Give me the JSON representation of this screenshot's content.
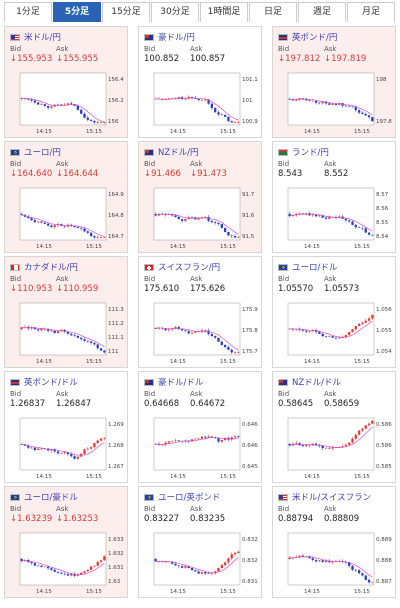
{
  "tabs": [
    {
      "label": "1分足",
      "active": false
    },
    {
      "label": "5分足",
      "active": true
    },
    {
      "label": "15分足",
      "active": false
    },
    {
      "label": "30分足",
      "active": false
    },
    {
      "label": "1時間足",
      "active": false
    },
    {
      "label": "日足",
      "active": false
    },
    {
      "label": "週足",
      "active": false
    },
    {
      "label": "月足",
      "active": false
    }
  ],
  "labels": {
    "bid": "Bid",
    "ask": "Ask"
  },
  "colors": {
    "pink_bg": "#fdeeee",
    "down": "#d43a3a",
    "title": "#3b3fa8",
    "tab_active": "#2a63b5",
    "candle_up": "#e23b3b",
    "candle_down": "#2b3fbf",
    "ma": "#d651c9"
  },
  "cards": [
    {
      "title": "米ドル/円",
      "flag": "us-flag-icon",
      "bid": "155.953",
      "ask": "155.955",
      "down": true,
      "bg": "pink",
      "x_labels": [
        "14:15",
        "15:15"
      ],
      "y_labels": [
        "156.4",
        "156.2",
        "156"
      ],
      "trend": "down"
    },
    {
      "title": "豪ドル/円",
      "flag": "au-flag-icon",
      "bid": "100.852",
      "ask": "100.857",
      "down": false,
      "bg": "white",
      "x_labels": [
        "14:15",
        "15:15"
      ],
      "y_labels": [
        "101.1",
        "101",
        "100.9"
      ],
      "trend": "down"
    },
    {
      "title": "英ポンド/円",
      "flag": "uk-flag-icon",
      "bid": "197.812",
      "ask": "197.819",
      "down": true,
      "bg": "pink",
      "x_labels": [
        "14:15",
        "15:15"
      ],
      "y_labels": [
        "198",
        "197.8"
      ],
      "trend": "down"
    },
    {
      "title": "ユーロ/円",
      "flag": "eu-flag-icon",
      "bid": "164.640",
      "ask": "164.644",
      "down": true,
      "bg": "pink",
      "x_labels": [
        "14:15",
        "15:15"
      ],
      "y_labels": [
        "164.9",
        "164.8",
        "164.7"
      ],
      "trend": "down"
    },
    {
      "title": "NZドル/円",
      "flag": "nz-flag-icon",
      "bid": "91.466",
      "ask": "91.473",
      "down": true,
      "bg": "pink",
      "x_labels": [
        "14:15",
        "15:15"
      ],
      "y_labels": [
        "91.7",
        "91.6",
        "91.5"
      ],
      "trend": "down"
    },
    {
      "title": "ランド/円",
      "flag": "za-flag-icon",
      "bid": "8.543",
      "ask": "8.552",
      "down": false,
      "bg": "white",
      "x_labels": [
        "14:15",
        "15:15"
      ],
      "y_labels": [
        "8.57",
        "8.56",
        "8.55",
        "8.54"
      ],
      "trend": "down"
    },
    {
      "title": "カナダドル/円",
      "flag": "ca-flag-icon",
      "bid": "110.953",
      "ask": "110.959",
      "down": true,
      "bg": "pink",
      "x_labels": [
        "14:15",
        "15:15"
      ],
      "y_labels": [
        "111.3",
        "111.2",
        "111.1",
        "111"
      ],
      "trend": "down"
    },
    {
      "title": "スイスフラン/円",
      "flag": "ch-flag-icon",
      "bid": "175.610",
      "ask": "175.626",
      "down": false,
      "bg": "white",
      "x_labels": [
        "14:15",
        "15:15"
      ],
      "y_labels": [
        "175.9",
        "175.8",
        "175.7"
      ],
      "trend": "down"
    },
    {
      "title": "ユーロ/ドル",
      "flag": "eu-flag-icon",
      "bid": "1.05570",
      "ask": "1.05573",
      "down": false,
      "bg": "white",
      "x_labels": [
        "14:15",
        "15:15"
      ],
      "y_labels": [
        "1.056",
        "1.055",
        "1.054"
      ],
      "trend": "up"
    },
    {
      "title": "英ポンド/ドル",
      "flag": "uk-flag-icon",
      "bid": "1.26837",
      "ask": "1.26847",
      "down": false,
      "bg": "white",
      "x_labels": [
        "14:15",
        "15:15"
      ],
      "y_labels": [
        "1.269",
        "1.268",
        "1.267"
      ],
      "trend": "up"
    },
    {
      "title": "豪ドル/ドル",
      "flag": "au-flag-icon",
      "bid": "0.64668",
      "ask": "0.64672",
      "down": false,
      "bg": "white",
      "x_labels": [
        "14:15",
        "15:15"
      ],
      "y_labels": [
        "0.6465",
        "0.646",
        "0.6455"
      ],
      "trend": "flat"
    },
    {
      "title": "NZドル/ドル",
      "flag": "nz-flag-icon",
      "bid": "0.58645",
      "ask": "0.58659",
      "down": false,
      "bg": "white",
      "x_labels": [
        "14:15",
        "15:15"
      ],
      "y_labels": [
        "0.5865",
        "0.586",
        "0.5855"
      ],
      "trend": "up"
    },
    {
      "title": "ユーロ/豪ドル",
      "flag": "eu-flag-icon",
      "bid": "1.63239",
      "ask": "1.63253",
      "down": true,
      "bg": "pink",
      "x_labels": [
        "14:15",
        "15:15"
      ],
      "y_labels": [
        "1.633",
        "1.632",
        "1.631",
        "1.63"
      ],
      "trend": "up"
    },
    {
      "title": "ユーロ/英ポンド",
      "flag": "eu-flag-icon",
      "bid": "0.83227",
      "ask": "0.83235",
      "down": false,
      "bg": "white",
      "x_labels": [
        "14:15",
        "15:15"
      ],
      "y_labels": [
        "0.8325",
        "0.832",
        "0.8315"
      ],
      "trend": "up"
    },
    {
      "title": "米ドル/スイスフラン",
      "flag": "us-flag-icon",
      "bid": "0.88794",
      "ask": "0.88809",
      "down": false,
      "bg": "white",
      "x_labels": [
        "14:15",
        "15:15"
      ],
      "y_labels": [
        "0.889",
        "0.888",
        "0.887"
      ],
      "trend": "down"
    }
  ]
}
